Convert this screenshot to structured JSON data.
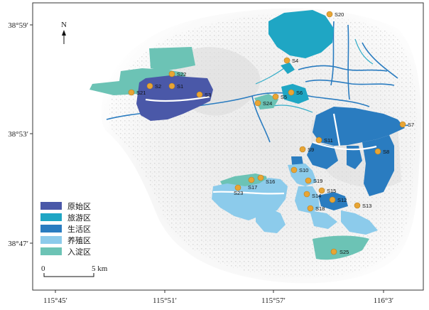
{
  "map": {
    "north_label": "N",
    "y_ticks": [
      "38°59′",
      "38°53′",
      "38°47′"
    ],
    "x_ticks": [
      "115°45′",
      "115°51′",
      "115°57′",
      "116°3′"
    ],
    "scale": {
      "start": "0",
      "end": "5 km"
    },
    "legend": [
      {
        "label": "原始区",
        "color": "#4a58a8"
      },
      {
        "label": "旅游区",
        "color": "#1fa6c4"
      },
      {
        "label": "生活区",
        "color": "#2a7cc0"
      },
      {
        "label": "养殖区",
        "color": "#8ccbeb"
      },
      {
        "label": "入淀区",
        "color": "#6cc3b5"
      }
    ],
    "sites": [
      "S1",
      "S2",
      "S3",
      "S4",
      "S5",
      "S6",
      "S7",
      "S8",
      "S9",
      "S10",
      "S11",
      "S12",
      "S13",
      "S14",
      "S15",
      "S16",
      "S17",
      "S18",
      "S19",
      "S20",
      "S21",
      "S22",
      "S23",
      "S24",
      "S25"
    ]
  }
}
